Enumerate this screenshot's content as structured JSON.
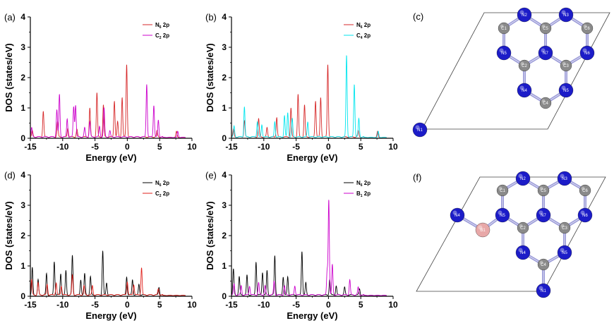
{
  "chart_data": [
    {
      "id": "a",
      "panel_label": "(a)",
      "type": "line",
      "xlabel": "Energy (eV)",
      "ylabel": "DOS (states/eV)",
      "xlim": [
        -15,
        10
      ],
      "ylim": [
        0,
        4
      ],
      "x_ticks": [
        -15,
        -10,
        -5,
        0,
        5,
        10
      ],
      "y_ticks": [
        0,
        1,
        2,
        3,
        4
      ],
      "x_tick_labels": [
        "-15",
        "-10",
        "-5",
        "0",
        "5",
        "10"
      ],
      "y_tick_labels": [
        "0",
        "1",
        "2",
        "3",
        "4"
      ],
      "legend_position": "top-right",
      "series": [
        {
          "name": "N6 2p",
          "legend_main": "N",
          "legend_sub": "6",
          "legend_suffix": " 2p",
          "color": "#d62728",
          "peaks": [
            [
              -14.7,
              0.2
            ],
            [
              -13.0,
              0.85
            ],
            [
              -10.8,
              0.5
            ],
            [
              -9.2,
              0.3
            ],
            [
              -7.8,
              0.25
            ],
            [
              -5.8,
              0.95
            ],
            [
              -4.7,
              1.45
            ],
            [
              -3.7,
              1.05
            ],
            [
              -2.0,
              1.2
            ],
            [
              -1.5,
              0.5
            ],
            [
              -0.8,
              1.3
            ],
            [
              -0.1,
              2.4
            ],
            [
              4.6,
              0.2
            ],
            [
              7.6,
              0.2
            ]
          ]
        },
        {
          "name": "C2 2p",
          "legend_main": "C",
          "legend_sub": "2",
          "legend_suffix": " 2p",
          "color": "#cc00cc",
          "peaks": [
            [
              -14.8,
              0.3
            ],
            [
              -10.9,
              0.9
            ],
            [
              -10.5,
              1.4
            ],
            [
              -9.3,
              0.6
            ],
            [
              -8.3,
              1.0
            ],
            [
              -8.0,
              1.05
            ],
            [
              -6.6,
              0.3
            ],
            [
              -5.8,
              0.5
            ],
            [
              -4.3,
              0.35
            ],
            [
              -3.6,
              0.95
            ],
            [
              -2.7,
              0.2
            ],
            [
              3.0,
              1.75
            ],
            [
              4.1,
              1.05
            ],
            [
              4.8,
              0.55
            ],
            [
              7.8,
              0.2
            ]
          ]
        }
      ]
    },
    {
      "id": "b",
      "panel_label": "(b)",
      "type": "line",
      "xlabel": "Energy (eV)",
      "ylabel": "DOS (states/eV)",
      "xlim": [
        -15,
        10
      ],
      "ylim": [
        0,
        4
      ],
      "x_ticks": [
        -15,
        -10,
        -5,
        0,
        5,
        10
      ],
      "y_ticks": [
        0,
        1,
        2,
        3,
        4
      ],
      "x_tick_labels": [
        "-15",
        "-10",
        "-5",
        "0",
        "5",
        "10"
      ],
      "y_tick_labels": [
        "0",
        "1",
        "2",
        "3",
        "4"
      ],
      "legend_position": "top-right",
      "series": [
        {
          "name": "N6 2p",
          "legend_main": "N",
          "legend_sub": "6",
          "legend_suffix": " 2p",
          "color": "#d62728",
          "peaks": [
            [
              -14.7,
              0.25
            ],
            [
              -13.0,
              0.55
            ],
            [
              -10.8,
              0.6
            ],
            [
              -9.5,
              0.3
            ],
            [
              -8.0,
              0.65
            ],
            [
              -5.8,
              0.95
            ],
            [
              -4.7,
              1.4
            ],
            [
              -3.7,
              1.05
            ],
            [
              -2.0,
              1.2
            ],
            [
              -1.2,
              1.3
            ],
            [
              -0.1,
              2.4
            ],
            [
              4.6,
              0.2
            ],
            [
              7.6,
              0.2
            ]
          ]
        },
        {
          "name": "C4 2p",
          "legend_main": "C",
          "legend_sub": "4",
          "legend_suffix": " 2p",
          "color": "#00e5ee",
          "peaks": [
            [
              -14.6,
              0.35
            ],
            [
              -13.0,
              1.0
            ],
            [
              -11.0,
              0.5
            ],
            [
              -10.3,
              0.4
            ],
            [
              -8.3,
              0.5
            ],
            [
              -6.8,
              0.7
            ],
            [
              -6.3,
              0.8
            ],
            [
              -5.6,
              0.6
            ],
            [
              -3.2,
              0.5
            ],
            [
              2.8,
              2.7
            ],
            [
              4.0,
              1.75
            ],
            [
              4.7,
              0.6
            ],
            [
              7.7,
              0.2
            ]
          ]
        }
      ]
    },
    {
      "id": "d",
      "panel_label": "(d)",
      "type": "line",
      "xlabel": "Energy (eV)",
      "ylabel": "DOS (states/eV)",
      "xlim": [
        -15,
        10
      ],
      "ylim": [
        0,
        4
      ],
      "x_ticks": [
        -15,
        -10,
        -5,
        0,
        5,
        10
      ],
      "y_ticks": [
        0,
        1,
        2,
        3,
        4
      ],
      "x_tick_labels": [
        "-15",
        "-10",
        "-5",
        "0",
        "5",
        "10"
      ],
      "y_tick_labels": [
        "0",
        "1",
        "2",
        "3",
        "4"
      ],
      "legend_position": "top-right",
      "series": [
        {
          "name": "N6 2p",
          "legend_main": "N",
          "legend_sub": "6",
          "legend_suffix": " 2p",
          "color": "#000000",
          "peaks": [
            [
              -14.7,
              0.9
            ],
            [
              -13.8,
              0.5
            ],
            [
              -12.5,
              0.7
            ],
            [
              -11.3,
              1.1
            ],
            [
              -10.3,
              0.7
            ],
            [
              -9.5,
              0.8
            ],
            [
              -8.5,
              1.3
            ],
            [
              -7.2,
              0.5
            ],
            [
              -6.6,
              0.7
            ],
            [
              -5.7,
              0.6
            ],
            [
              -3.8,
              1.45
            ],
            [
              -3.2,
              0.4
            ],
            [
              -0.1,
              0.6
            ],
            [
              0.8,
              0.5
            ],
            [
              1.8,
              0.35
            ],
            [
              4.9,
              0.25
            ]
          ]
        },
        {
          "name": "C2 2p",
          "legend_main": "C",
          "legend_sub": "2",
          "legend_suffix": " 2p",
          "color": "#e0201b",
          "peaks": [
            [
              -14.8,
              0.5
            ],
            [
              -13.8,
              0.4
            ],
            [
              -12.4,
              0.35
            ],
            [
              -11.0,
              0.4
            ],
            [
              -10.2,
              0.3
            ],
            [
              -8.5,
              0.65
            ],
            [
              -6.7,
              0.3
            ],
            [
              -5.4,
              0.3
            ],
            [
              0.0,
              0.45
            ],
            [
              1.0,
              0.35
            ],
            [
              2.2,
              0.9
            ],
            [
              4.8,
              0.2
            ]
          ]
        }
      ]
    },
    {
      "id": "e",
      "panel_label": "(e)",
      "type": "line",
      "xlabel": "Energy (eV)",
      "ylabel": "DOS (states/eV)",
      "xlim": [
        -15,
        10
      ],
      "ylim": [
        0,
        4
      ],
      "x_ticks": [
        -15,
        -10,
        -5,
        0,
        5,
        10
      ],
      "y_ticks": [
        0,
        1,
        2,
        3,
        4
      ],
      "x_tick_labels": [
        "-15",
        "-10",
        "-5",
        "0",
        "5",
        "10"
      ],
      "y_tick_labels": [
        "0",
        "1",
        "2",
        "3",
        "4"
      ],
      "legend_position": "top-right",
      "series": [
        {
          "name": "N6 2p",
          "legend_main": "N",
          "legend_sub": "6",
          "legend_suffix": " 2p",
          "color": "#000000",
          "peaks": [
            [
              -14.7,
              0.85
            ],
            [
              -13.8,
              0.6
            ],
            [
              -12.6,
              0.65
            ],
            [
              -11.2,
              1.1
            ],
            [
              -10.2,
              0.75
            ],
            [
              -9.5,
              0.8
            ],
            [
              -8.3,
              1.3
            ],
            [
              -7.0,
              0.6
            ],
            [
              -6.3,
              0.6
            ],
            [
              -4.1,
              1.45
            ],
            [
              -3.5,
              0.4
            ],
            [
              0.2,
              0.5
            ],
            [
              1.2,
              0.3
            ],
            [
              2.5,
              0.25
            ],
            [
              4.8,
              0.2
            ]
          ]
        },
        {
          "name": "B1 2p",
          "legend_main": "B",
          "legend_sub": "1",
          "legend_suffix": " 2p",
          "color": "#cc00cc",
          "peaks": [
            [
              -14.6,
              0.35
            ],
            [
              -13.5,
              0.3
            ],
            [
              -12.2,
              0.3
            ],
            [
              -10.8,
              0.4
            ],
            [
              -9.8,
              0.3
            ],
            [
              -8.4,
              0.45
            ],
            [
              -6.8,
              0.3
            ],
            [
              -5.2,
              0.3
            ],
            [
              -0.2,
              0.8
            ],
            [
              0.05,
              3.15
            ],
            [
              0.6,
              1.0
            ],
            [
              3.3,
              0.5
            ],
            [
              4.6,
              0.25
            ]
          ]
        }
      ]
    }
  ],
  "structures": [
    {
      "id": "c",
      "panel_label": "(c)",
      "atoms": [
        {
          "label": "N2",
          "element": "N"
        },
        {
          "label": "N3",
          "element": "N"
        },
        {
          "label": "C1",
          "element": "C"
        },
        {
          "label": "C5",
          "element": "C"
        },
        {
          "label": "C6",
          "element": "C"
        },
        {
          "label": "N5",
          "element": "N"
        },
        {
          "label": "N7",
          "element": "N"
        },
        {
          "label": "N6",
          "element": "N"
        },
        {
          "label": "C2",
          "element": "C"
        },
        {
          "label": "C3",
          "element": "C"
        },
        {
          "label": "N4",
          "element": "N"
        },
        {
          "label": "N5",
          "element": "N"
        },
        {
          "label": "C4",
          "element": "C"
        },
        {
          "label": "N1",
          "element": "N"
        }
      ]
    },
    {
      "id": "f",
      "panel_label": "(f)",
      "atoms": [
        {
          "label": "N2",
          "element": "N"
        },
        {
          "label": "N3",
          "element": "N"
        },
        {
          "label": "C1",
          "element": "C"
        },
        {
          "label": "C5",
          "element": "C"
        },
        {
          "label": "C6",
          "element": "C"
        },
        {
          "label": "N4",
          "element": "N"
        },
        {
          "label": "B1",
          "element": "B"
        },
        {
          "label": "N5",
          "element": "N"
        },
        {
          "label": "N7",
          "element": "N"
        },
        {
          "label": "N6",
          "element": "N"
        },
        {
          "label": "C2",
          "element": "C"
        },
        {
          "label": "C3",
          "element": "C"
        },
        {
          "label": "N4",
          "element": "N"
        },
        {
          "label": "N5",
          "element": "N"
        },
        {
          "label": "C4",
          "element": "C"
        },
        {
          "label": "N1",
          "element": "N"
        }
      ]
    }
  ],
  "colors": {
    "nitrogen": "#1c1cc8",
    "carbon": "#8a8a8a",
    "boron": "#e8a8a8",
    "bond": "#9a9ad8",
    "frame": "#444444"
  }
}
